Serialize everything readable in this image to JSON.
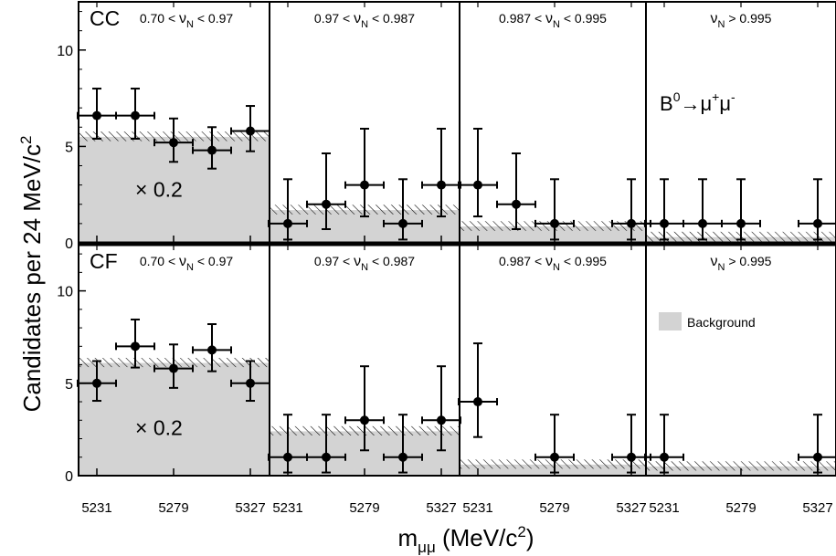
{
  "figure": {
    "ylabel": "Candidates per 24 MeV/c",
    "ylabel_sup": "2",
    "xlabel_main": "m",
    "xlabel_sub": "μμ",
    "xlabel_unit": " (MeV/c",
    "xlabel_sup": "2",
    "xlabel_close": ")",
    "decay_label": "B",
    "decay_sup0": "0",
    "decay_arrow": "→μ",
    "decay_supplus": "+",
    "decay_mu": "μ",
    "decay_supminus": "-",
    "legend_background": "Background",
    "scale_note": "× 0.2",
    "colors": {
      "background_fill": "#d3d3d3",
      "ink": "#000000"
    }
  },
  "chart_data": {
    "type": "scatter",
    "x_unit": "MeV/c^2",
    "x_ticks": [
      "5231",
      "5279",
      "5327"
    ],
    "y_ticks": [
      "0",
      "5",
      "10"
    ],
    "ylim": [
      0,
      12.5
    ],
    "xlim": [
      5219,
      5339
    ],
    "bin_width": 24,
    "rows": [
      {
        "name": "CC",
        "panels": [
          {
            "range_label": {
              "lo": "0.70 < ",
              "nu": "ν",
              "sub": "N",
              "hi": " < 0.97"
            },
            "background_level": 5.5,
            "scaled_note": true,
            "points": [
              {
                "x": 5231,
                "y": 6.6,
                "yerr_lo": 1.2,
                "yerr_hi": 1.4
              },
              {
                "x": 5255,
                "y": 6.6,
                "yerr_lo": 1.2,
                "yerr_hi": 1.4
              },
              {
                "x": 5279,
                "y": 5.2,
                "yerr_lo": 1.0,
                "yerr_hi": 1.25
              },
              {
                "x": 5303,
                "y": 4.8,
                "yerr_lo": 0.95,
                "yerr_hi": 1.2
              },
              {
                "x": 5327,
                "y": 5.8,
                "yerr_lo": 1.05,
                "yerr_hi": 1.3
              }
            ]
          },
          {
            "range_label": {
              "lo": "0.97 < ",
              "nu": "ν",
              "sub": "N",
              "hi": " < 0.987"
            },
            "background_level": 1.7,
            "scaled_note": false,
            "points": [
              {
                "x": 5231,
                "y": 1,
                "yerr_lo": 0.83,
                "yerr_hi": 2.3
              },
              {
                "x": 5255,
                "y": 2,
                "yerr_lo": 1.29,
                "yerr_hi": 2.64
              },
              {
                "x": 5279,
                "y": 3,
                "yerr_lo": 1.63,
                "yerr_hi": 2.92
              },
              {
                "x": 5303,
                "y": 1,
                "yerr_lo": 0.83,
                "yerr_hi": 2.3
              },
              {
                "x": 5327,
                "y": 3,
                "yerr_lo": 1.63,
                "yerr_hi": 2.92
              }
            ]
          },
          {
            "range_label": {
              "lo": "0.987 < ",
              "nu": "ν",
              "sub": "N",
              "hi": " < 0.995"
            },
            "background_level": 0.85,
            "scaled_note": false,
            "points": [
              {
                "x": 5231,
                "y": 3,
                "yerr_lo": 1.63,
                "yerr_hi": 2.92
              },
              {
                "x": 5255,
                "y": 2,
                "yerr_lo": 1.29,
                "yerr_hi": 2.64
              },
              {
                "x": 5279,
                "y": 1,
                "yerr_lo": 0.83,
                "yerr_hi": 2.3
              },
              {
                "x": 5327,
                "y": 1,
                "yerr_lo": 0.83,
                "yerr_hi": 2.3
              }
            ]
          },
          {
            "range_label": {
              "lo": "",
              "nu": "ν",
              "sub": "N",
              "hi": " > 0.995"
            },
            "background_level": 0.3,
            "scaled_note": false,
            "points": [
              {
                "x": 5231,
                "y": 1,
                "yerr_lo": 0.83,
                "yerr_hi": 2.3
              },
              {
                "x": 5255,
                "y": 1,
                "yerr_lo": 0.83,
                "yerr_hi": 2.3
              },
              {
                "x": 5279,
                "y": 1,
                "yerr_lo": 0.83,
                "yerr_hi": 2.3
              },
              {
                "x": 5327,
                "y": 1,
                "yerr_lo": 0.83,
                "yerr_hi": 2.3
              }
            ]
          }
        ]
      },
      {
        "name": "CF",
        "panels": [
          {
            "range_label": {
              "lo": "0.70 < ",
              "nu": "ν",
              "sub": "N",
              "hi": " < 0.97"
            },
            "background_level": 6.1,
            "scaled_note": true,
            "points": [
              {
                "x": 5231,
                "y": 5.0,
                "yerr_lo": 0.95,
                "yerr_hi": 1.2
              },
              {
                "x": 5255,
                "y": 7.0,
                "yerr_lo": 1.15,
                "yerr_hi": 1.45
              },
              {
                "x": 5279,
                "y": 5.8,
                "yerr_lo": 1.05,
                "yerr_hi": 1.3
              },
              {
                "x": 5303,
                "y": 6.8,
                "yerr_lo": 1.15,
                "yerr_hi": 1.4
              },
              {
                "x": 5327,
                "y": 5.0,
                "yerr_lo": 0.95,
                "yerr_hi": 1.2
              }
            ]
          },
          {
            "range_label": {
              "lo": "0.97 < ",
              "nu": "ν",
              "sub": "N",
              "hi": " < 0.987"
            },
            "background_level": 2.4,
            "scaled_note": false,
            "points": [
              {
                "x": 5231,
                "y": 1,
                "yerr_lo": 0.83,
                "yerr_hi": 2.3
              },
              {
                "x": 5255,
                "y": 1,
                "yerr_lo": 0.83,
                "yerr_hi": 2.3
              },
              {
                "x": 5279,
                "y": 3,
                "yerr_lo": 1.63,
                "yerr_hi": 2.92
              },
              {
                "x": 5303,
                "y": 1,
                "yerr_lo": 0.83,
                "yerr_hi": 2.3
              },
              {
                "x": 5327,
                "y": 3,
                "yerr_lo": 1.63,
                "yerr_hi": 2.92
              }
            ]
          },
          {
            "range_label": {
              "lo": "0.987 < ",
              "nu": "ν",
              "sub": "N",
              "hi": " < 0.995"
            },
            "background_level": 0.6,
            "scaled_note": false,
            "points": [
              {
                "x": 5231,
                "y": 4,
                "yerr_lo": 1.91,
                "yerr_hi": 3.16
              },
              {
                "x": 5279,
                "y": 1,
                "yerr_lo": 0.83,
                "yerr_hi": 2.3
              },
              {
                "x": 5327,
                "y": 1,
                "yerr_lo": 0.83,
                "yerr_hi": 2.3
              }
            ]
          },
          {
            "range_label": {
              "lo": "",
              "nu": "ν",
              "sub": "N",
              "hi": " > 0.995"
            },
            "background_level": 0.5,
            "scaled_note": false,
            "points": [
              {
                "x": 5231,
                "y": 1,
                "yerr_lo": 0.83,
                "yerr_hi": 2.3
              },
              {
                "x": 5327,
                "y": 1,
                "yerr_lo": 0.83,
                "yerr_hi": 2.3
              }
            ]
          }
        ]
      }
    ]
  }
}
